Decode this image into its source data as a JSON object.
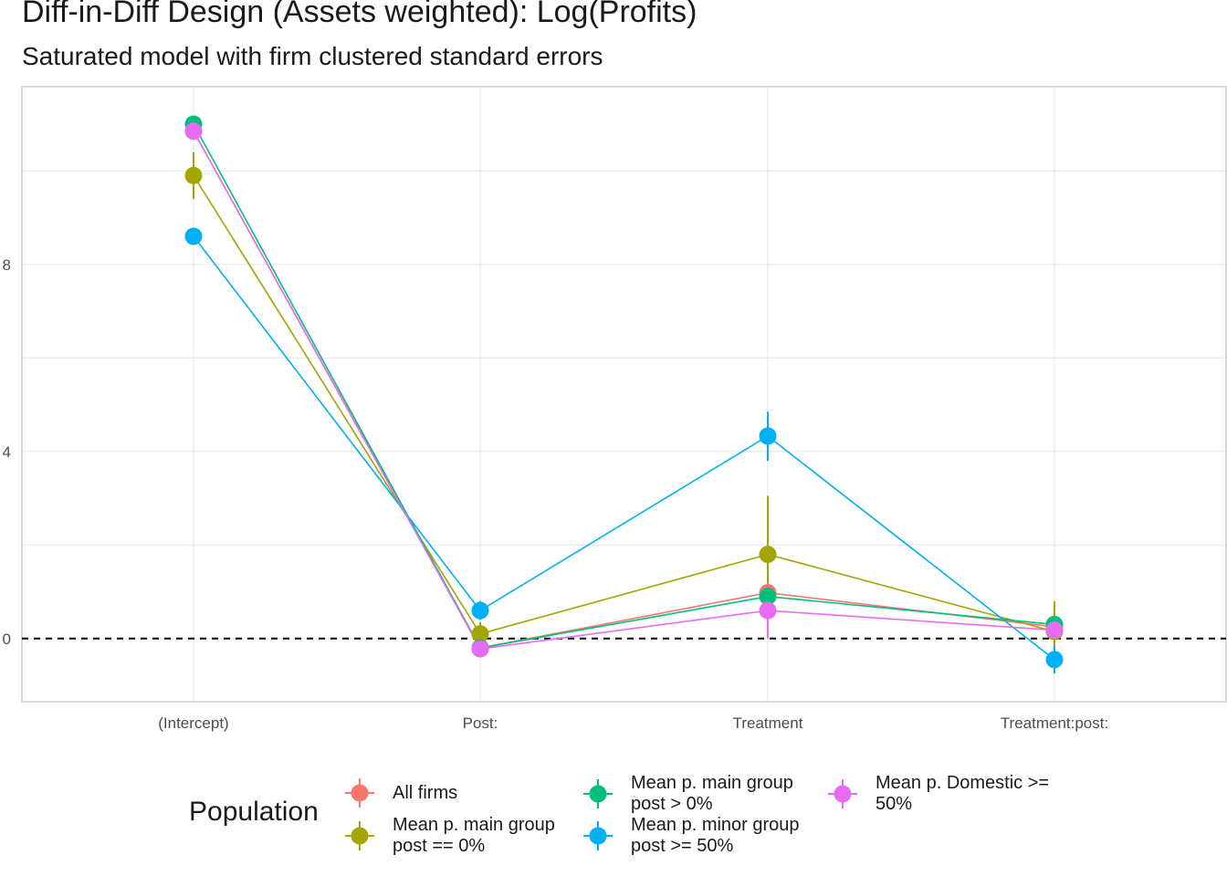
{
  "title": "Diff-in-Diff Design (Assets weighted): Log(Profits)",
  "subtitle": "Saturated model with firm clustered standard errors",
  "chart_data": {
    "type": "line",
    "categories": [
      "(Intercept)",
      "Post:",
      "Treatment",
      "Treatment:post:"
    ],
    "ylim": [
      -1.35,
      11.8
    ],
    "yticks": [
      0,
      4,
      8
    ],
    "ytick_labels": [
      "0",
      "4",
      "8"
    ],
    "reference_line": 0,
    "grid": true,
    "legend": {
      "title": "Population",
      "position": "bottom"
    },
    "series": [
      {
        "name": "All firms",
        "color": "#F8766D",
        "values": [
          10.85,
          -0.2,
          0.98,
          0.25
        ],
        "lower": [
          10.8,
          -0.3,
          0.8,
          0.1
        ],
        "upper": [
          10.9,
          -0.1,
          1.15,
          0.4
        ]
      },
      {
        "name": "Mean p. main group post == 0%",
        "color": "#A3A500",
        "values": [
          9.9,
          0.1,
          1.8,
          0.15
        ],
        "lower": [
          9.4,
          -0.15,
          0.5,
          -0.3
        ],
        "upper": [
          10.4,
          0.35,
          3.05,
          0.8
        ]
      },
      {
        "name": "Mean p. main group post > 0%",
        "color": "#00BF7D",
        "values": [
          11.0,
          -0.2,
          0.9,
          0.3
        ],
        "lower": [
          10.9,
          -0.3,
          0.75,
          0.15
        ],
        "upper": [
          11.1,
          -0.1,
          1.05,
          0.45
        ]
      },
      {
        "name": "Mean p. minor group post >= 50%",
        "color": "#00B0F6",
        "values": [
          8.6,
          0.6,
          4.33,
          -0.45
        ],
        "lower": [
          8.5,
          0.4,
          3.8,
          -0.75
        ],
        "upper": [
          8.7,
          0.8,
          4.85,
          -0.15
        ]
      },
      {
        "name": "Mean p. Domestic >= 50%",
        "color": "#E76BF3",
        "values": [
          10.85,
          -0.22,
          0.6,
          0.18
        ],
        "lower": [
          10.75,
          -0.35,
          0.0,
          0.05
        ],
        "upper": [
          10.95,
          -0.1,
          1.2,
          0.3
        ]
      }
    ]
  },
  "legend_items": [
    {
      "line1": "All firms",
      "line2": ""
    },
    {
      "line1": "Mean p. main group",
      "line2": "post == 0%"
    },
    {
      "line1": "Mean p. main group",
      "line2": "post > 0%"
    },
    {
      "line1": "Mean p. minor group",
      "line2": "post >= 50%"
    },
    {
      "line1": "Mean p. Domestic >=",
      "line2": "50%"
    }
  ]
}
